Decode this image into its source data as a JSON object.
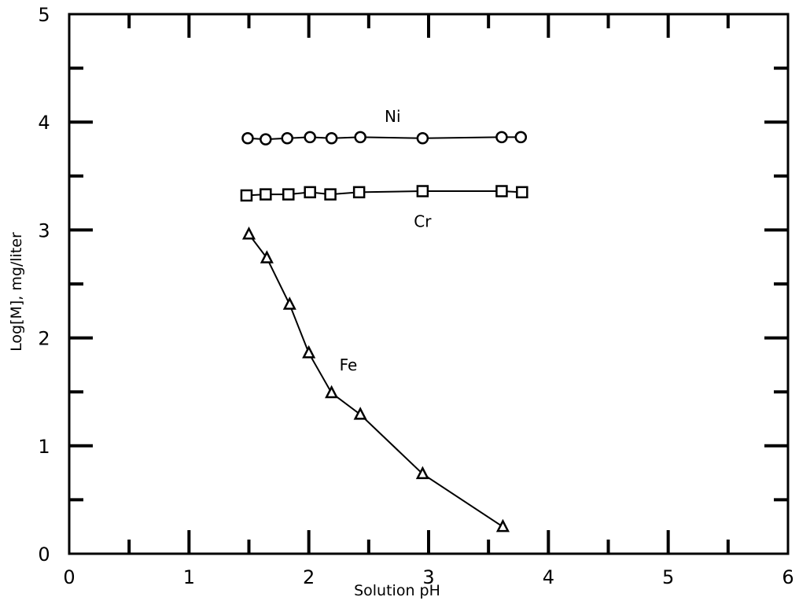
{
  "chart_data": {
    "type": "line",
    "title": "",
    "xlabel": "Solution pH",
    "ylabel": "Log[M], mg/liter",
    "xlim": [
      0,
      6
    ],
    "ylim": [
      0,
      5
    ],
    "x_ticks": [
      "0",
      "1",
      "2",
      "3",
      "4",
      "5",
      "6"
    ],
    "y_ticks": [
      "0",
      "1",
      "2",
      "3",
      "4",
      "5"
    ],
    "grid": false,
    "legend": "none",
    "series": [
      {
        "name": "Ni",
        "marker": "circle",
        "x": [
          1.49,
          1.64,
          1.82,
          2.01,
          2.19,
          2.43,
          2.95,
          3.61,
          3.77
        ],
        "y": [
          3.85,
          3.84,
          3.85,
          3.86,
          3.85,
          3.86,
          3.85,
          3.86,
          3.86
        ]
      },
      {
        "name": "Cr",
        "marker": "square",
        "x": [
          1.48,
          1.64,
          1.83,
          2.01,
          2.18,
          2.42,
          2.95,
          3.61,
          3.78
        ],
        "y": [
          3.32,
          3.33,
          3.33,
          3.35,
          3.33,
          3.35,
          3.36,
          3.36,
          3.35
        ]
      },
      {
        "name": "Fe",
        "marker": "triangle",
        "x": [
          1.5,
          1.65,
          1.84,
          2.0,
          2.19,
          2.43,
          2.95,
          3.62
        ],
        "y": [
          2.96,
          2.74,
          2.31,
          1.86,
          1.49,
          1.29,
          0.74,
          0.25
        ]
      }
    ],
    "series_label_positions": {
      "Ni": {
        "x": 2.7,
        "y": 4.0
      },
      "Cr": {
        "x": 2.95,
        "y": 3.03
      },
      "Fe": {
        "x": 2.33,
        "y": 1.7
      }
    }
  }
}
